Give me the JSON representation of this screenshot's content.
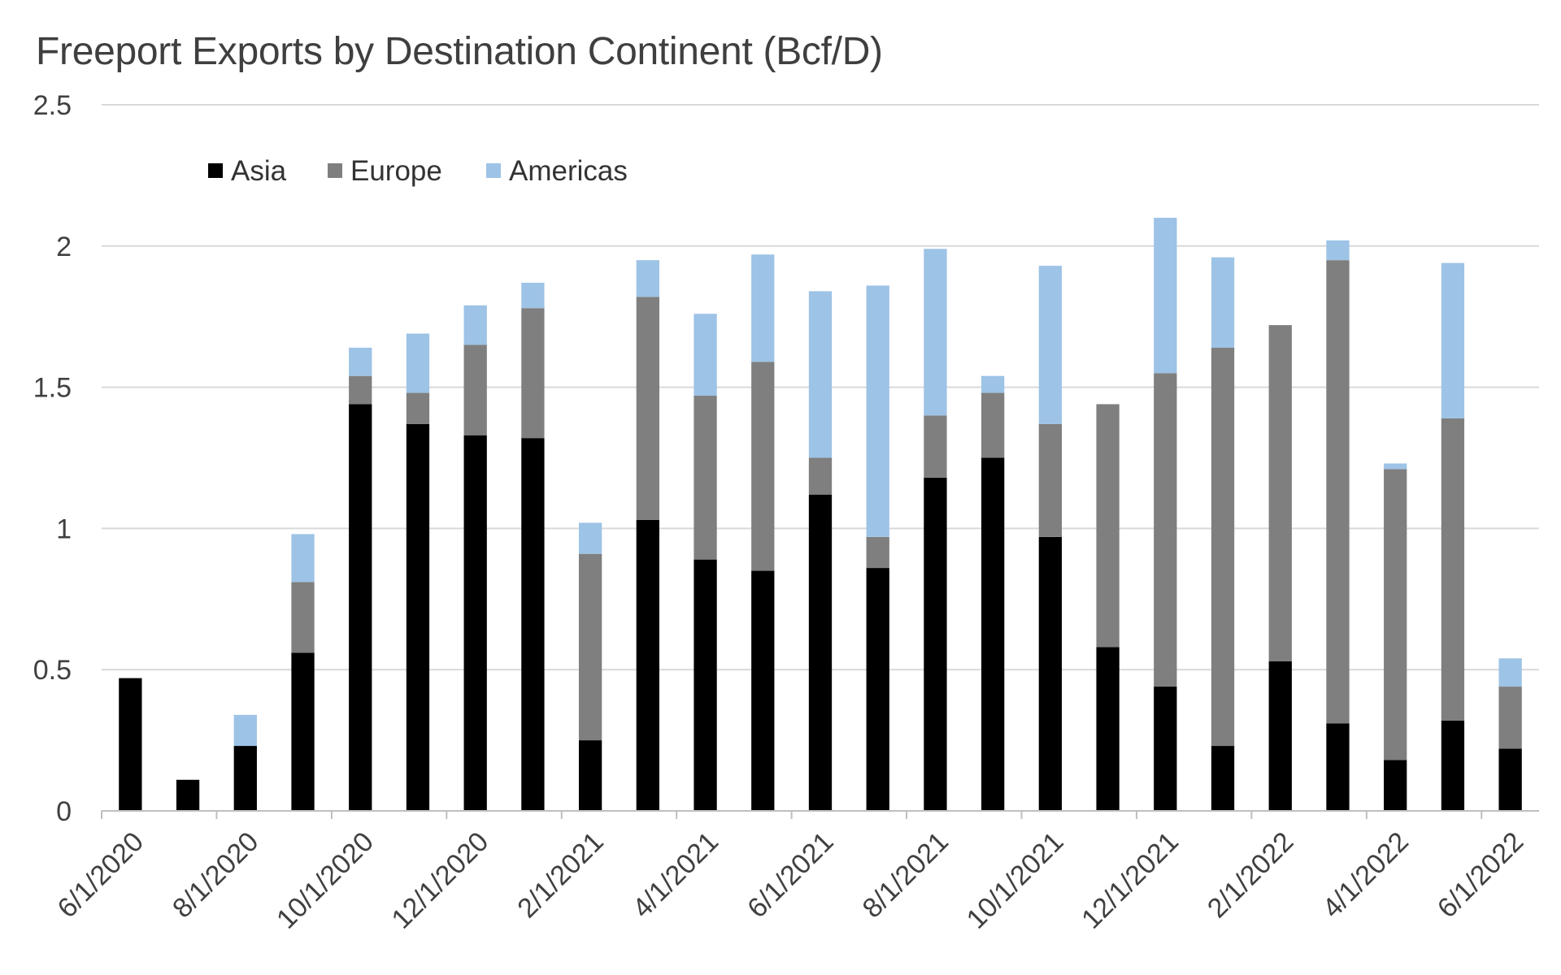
{
  "chart_data": {
    "type": "bar",
    "stacked": true,
    "title": "Freeport Exports by Destination Continent (Bcf/D)",
    "xlabel": "",
    "ylabel": "",
    "ylim": [
      0,
      2.5
    ],
    "y_ticks": [
      "0",
      "0.5",
      "1",
      "1.5",
      "2",
      "2.5"
    ],
    "y_tick_values": [
      0,
      0.5,
      1,
      1.5,
      2,
      2.5
    ],
    "grid": true,
    "legend_position": "top-left",
    "categories": [
      "6/1/2020",
      "7/1/2020",
      "8/1/2020",
      "9/1/2020",
      "10/1/2020",
      "11/1/2020",
      "12/1/2020",
      "1/1/2021",
      "2/1/2021",
      "3/1/2021",
      "4/1/2021",
      "5/1/2021",
      "6/1/2021",
      "7/1/2021",
      "8/1/2021",
      "9/1/2021",
      "10/1/2021",
      "11/1/2021",
      "12/1/2021",
      "1/1/2022",
      "2/1/2022",
      "3/1/2022",
      "4/1/2022",
      "5/1/2022",
      "6/1/2022"
    ],
    "x_tick_labels": [
      "6/1/2020",
      "8/1/2020",
      "10/1/2020",
      "12/1/2020",
      "2/1/2021",
      "4/1/2021",
      "6/1/2021",
      "8/1/2021",
      "10/1/2021",
      "12/1/2021",
      "2/1/2022",
      "4/1/2022",
      "6/1/2022"
    ],
    "series": [
      {
        "name": "Asia",
        "color": "#000000",
        "values": [
          0.47,
          0.11,
          0.23,
          0.56,
          1.44,
          1.37,
          1.33,
          1.32,
          0.25,
          1.03,
          0.89,
          0.85,
          1.12,
          0.86,
          1.18,
          1.25,
          0.97,
          0.58,
          0.44,
          0.23,
          0.53,
          0.31,
          0.18,
          0.32,
          0.22
        ]
      },
      {
        "name": "Europe",
        "color": "#7f7f7f",
        "values": [
          0,
          0,
          0,
          0.25,
          0.1,
          0.11,
          0.32,
          0.46,
          0.66,
          0.79,
          0.58,
          0.74,
          0.13,
          0.11,
          0.22,
          0.23,
          0.4,
          0.86,
          1.11,
          1.41,
          1.19,
          1.64,
          1.03,
          1.07,
          0.22
        ]
      },
      {
        "name": "Americas",
        "color": "#9dc3e6",
        "values": [
          0,
          0,
          0.11,
          0.17,
          0.1,
          0.21,
          0.14,
          0.09,
          0.11,
          0.13,
          0.29,
          0.38,
          0.59,
          0.89,
          0.59,
          0.06,
          0.56,
          0,
          0.55,
          0.32,
          0,
          0.07,
          0.02,
          0.55,
          0.1
        ]
      }
    ]
  }
}
